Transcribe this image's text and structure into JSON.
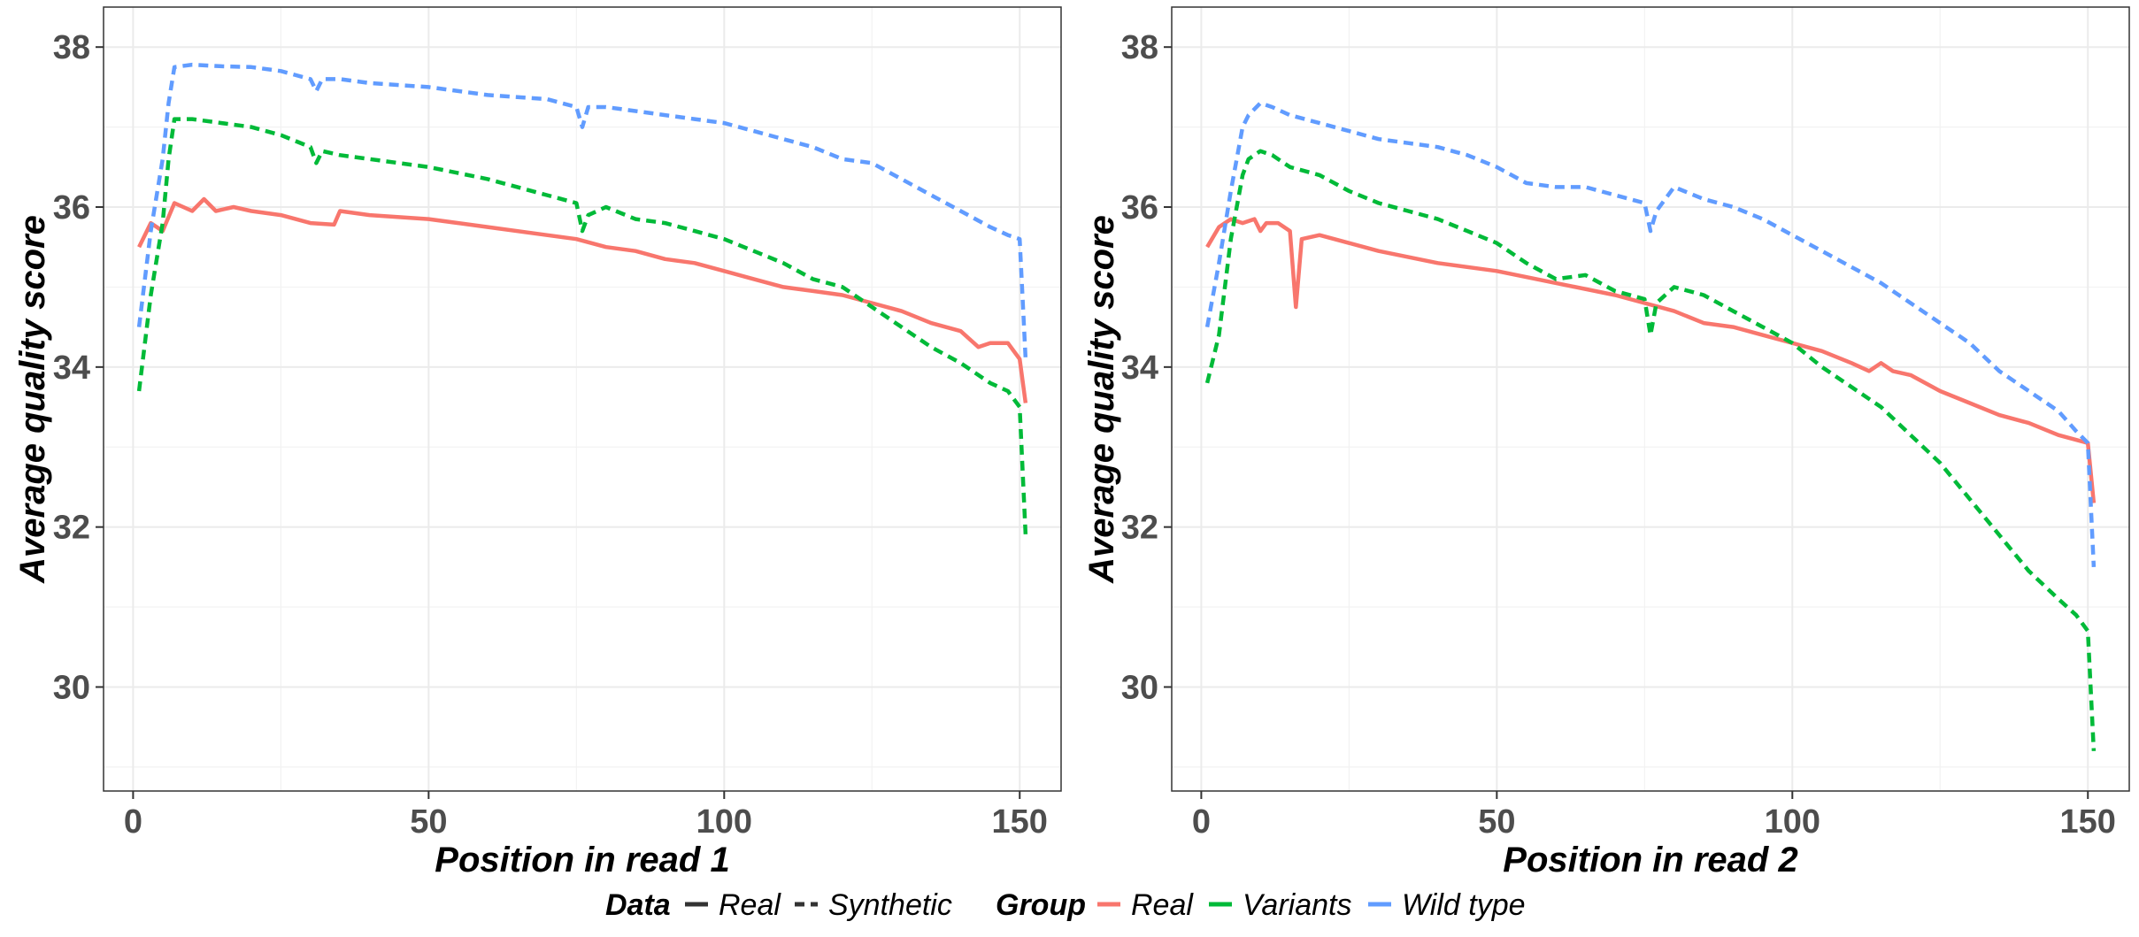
{
  "chart_data": [
    {
      "type": "line",
      "panel": "read1",
      "xlabel": "Position in read 1",
      "ylabel": "Average quality score",
      "xlim": [
        -5,
        157
      ],
      "ylim": [
        28.7,
        38.5
      ],
      "xticks": [
        0,
        50,
        100,
        150
      ],
      "yticks": [
        30,
        32,
        34,
        36,
        38
      ],
      "grid": true,
      "series": [
        {
          "group": "Real",
          "data": "Real",
          "color": "#F8766D",
          "linestyle": "solid",
          "x": [
            1,
            3,
            5,
            7,
            10,
            12,
            14,
            17,
            20,
            25,
            30,
            34,
            35,
            40,
            50,
            60,
            70,
            75,
            80,
            85,
            90,
            95,
            100,
            105,
            110,
            115,
            120,
            125,
            130,
            135,
            140,
            143,
            145,
            148,
            150,
            151
          ],
          "y": [
            35.5,
            35.8,
            35.7,
            36.05,
            35.95,
            36.1,
            35.95,
            36.0,
            35.95,
            35.9,
            35.8,
            35.78,
            35.95,
            35.9,
            35.85,
            35.75,
            35.65,
            35.6,
            35.5,
            35.45,
            35.35,
            35.3,
            35.2,
            35.1,
            35.0,
            34.95,
            34.9,
            34.8,
            34.7,
            34.55,
            34.45,
            34.25,
            34.3,
            34.3,
            34.1,
            33.55
          ]
        },
        {
          "group": "Variants",
          "data": "Synthetic",
          "color": "#00BA38",
          "linestyle": "dashed",
          "x": [
            1,
            3,
            5,
            6,
            7,
            10,
            15,
            20,
            25,
            30,
            31,
            32,
            35,
            40,
            50,
            60,
            70,
            75,
            76,
            77,
            80,
            85,
            90,
            95,
            100,
            105,
            110,
            115,
            120,
            125,
            130,
            135,
            140,
            145,
            148,
            150,
            151
          ],
          "y": [
            33.7,
            34.9,
            35.8,
            36.6,
            37.1,
            37.1,
            37.05,
            37.0,
            36.9,
            36.75,
            36.55,
            36.7,
            36.65,
            36.6,
            36.5,
            36.35,
            36.15,
            36.05,
            35.7,
            35.9,
            36.0,
            35.85,
            35.8,
            35.7,
            35.6,
            35.45,
            35.3,
            35.1,
            35.0,
            34.75,
            34.5,
            34.25,
            34.05,
            33.8,
            33.7,
            33.5,
            31.9
          ]
        },
        {
          "group": "Wild type",
          "data": "Synthetic",
          "color": "#619CFF",
          "linestyle": "dashed",
          "x": [
            1,
            3,
            5,
            6,
            7,
            10,
            15,
            20,
            25,
            30,
            31,
            32,
            35,
            40,
            50,
            60,
            70,
            75,
            76,
            77,
            80,
            85,
            90,
            95,
            100,
            105,
            110,
            115,
            120,
            125,
            130,
            135,
            140,
            145,
            148,
            150,
            151
          ],
          "y": [
            34.5,
            35.7,
            36.6,
            37.3,
            37.75,
            37.78,
            37.76,
            37.75,
            37.7,
            37.6,
            37.45,
            37.6,
            37.6,
            37.55,
            37.5,
            37.4,
            37.35,
            37.25,
            37.0,
            37.25,
            37.25,
            37.2,
            37.15,
            37.1,
            37.05,
            36.95,
            36.85,
            36.75,
            36.6,
            36.55,
            36.35,
            36.15,
            35.95,
            35.75,
            35.65,
            35.6,
            34.1
          ]
        }
      ]
    },
    {
      "type": "line",
      "panel": "read2",
      "xlabel": "Position in read 2",
      "ylabel": "Average quality score",
      "xlim": [
        -5,
        157
      ],
      "ylim": [
        28.7,
        38.5
      ],
      "xticks": [
        0,
        50,
        100,
        150
      ],
      "yticks": [
        30,
        32,
        34,
        36,
        38
      ],
      "grid": true,
      "series": [
        {
          "group": "Real",
          "data": "Real",
          "color": "#F8766D",
          "linestyle": "solid",
          "x": [
            1,
            3,
            5,
            7,
            9,
            10,
            11,
            13,
            15,
            16,
            17,
            20,
            25,
            30,
            40,
            50,
            60,
            70,
            75,
            80,
            85,
            90,
            95,
            100,
            105,
            110,
            113,
            115,
            117,
            120,
            125,
            130,
            135,
            140,
            145,
            150,
            151
          ],
          "y": [
            35.5,
            35.75,
            35.85,
            35.8,
            35.85,
            35.7,
            35.8,
            35.8,
            35.7,
            34.75,
            35.6,
            35.65,
            35.55,
            35.45,
            35.3,
            35.2,
            35.05,
            34.9,
            34.8,
            34.7,
            34.55,
            34.5,
            34.4,
            34.3,
            34.2,
            34.05,
            33.95,
            34.05,
            33.95,
            33.9,
            33.7,
            33.55,
            33.4,
            33.3,
            33.15,
            33.05,
            32.3
          ]
        },
        {
          "group": "Variants",
          "data": "Synthetic",
          "color": "#00BA38",
          "linestyle": "dashed",
          "x": [
            1,
            3,
            5,
            7,
            8,
            10,
            12,
            15,
            20,
            25,
            30,
            35,
            40,
            45,
            50,
            55,
            60,
            65,
            70,
            75,
            76,
            77,
            80,
            85,
            90,
            95,
            100,
            105,
            110,
            115,
            120,
            125,
            130,
            135,
            140,
            145,
            148,
            150,
            151
          ],
          "y": [
            33.8,
            34.4,
            35.6,
            36.4,
            36.6,
            36.7,
            36.65,
            36.5,
            36.4,
            36.2,
            36.05,
            35.95,
            35.85,
            35.7,
            35.55,
            35.3,
            35.1,
            35.15,
            34.95,
            34.85,
            34.4,
            34.8,
            35.0,
            34.9,
            34.7,
            34.5,
            34.3,
            34.0,
            33.75,
            33.5,
            33.15,
            32.8,
            32.35,
            31.9,
            31.45,
            31.1,
            30.9,
            30.7,
            29.2
          ]
        },
        {
          "group": "Wild type",
          "data": "Synthetic",
          "color": "#619CFF",
          "linestyle": "dashed",
          "x": [
            1,
            3,
            5,
            7,
            8,
            10,
            12,
            15,
            20,
            25,
            30,
            35,
            40,
            45,
            50,
            55,
            60,
            65,
            70,
            75,
            76,
            77,
            80,
            85,
            90,
            95,
            100,
            105,
            110,
            115,
            120,
            125,
            130,
            135,
            140,
            145,
            148,
            150,
            151
          ],
          "y": [
            34.5,
            35.3,
            36.2,
            37.0,
            37.15,
            37.3,
            37.25,
            37.15,
            37.05,
            36.95,
            36.85,
            36.8,
            36.75,
            36.65,
            36.5,
            36.3,
            36.25,
            36.25,
            36.15,
            36.05,
            35.7,
            35.95,
            36.25,
            36.1,
            36.0,
            35.85,
            35.65,
            35.45,
            35.25,
            35.05,
            34.8,
            34.55,
            34.3,
            33.95,
            33.7,
            33.45,
            33.2,
            33.05,
            31.5
          ]
        }
      ]
    }
  ],
  "legend": {
    "placement": "bottom",
    "data_title": "Data",
    "data_entries": [
      {
        "label": "Real",
        "linestyle": "solid"
      },
      {
        "label": "Synthetic",
        "linestyle": "dashed"
      }
    ],
    "group_title": "Group",
    "group_entries": [
      {
        "label": "Real",
        "color": "#F8766D"
      },
      {
        "label": "Variants",
        "color": "#00BA38"
      },
      {
        "label": "Wild type",
        "color": "#619CFF"
      }
    ]
  }
}
